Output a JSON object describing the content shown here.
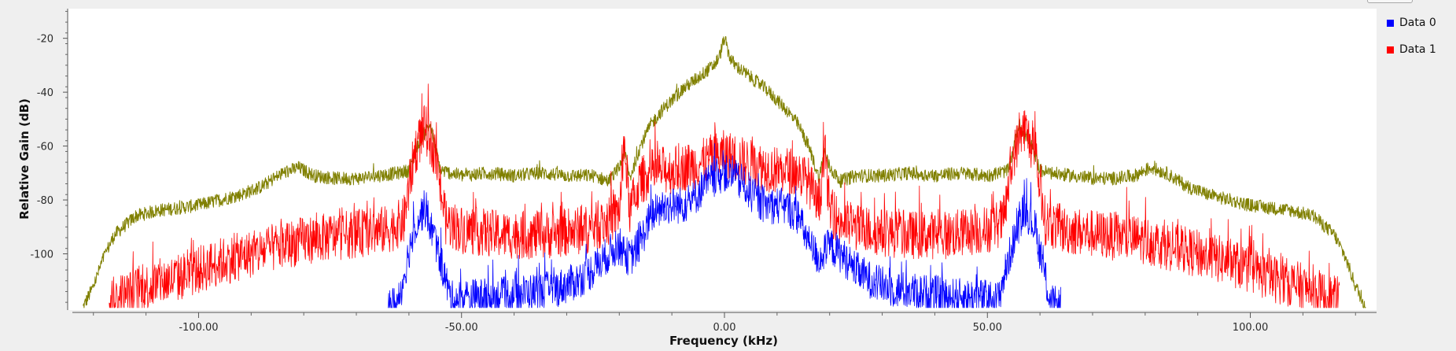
{
  "chart_data": {
    "type": "line",
    "title": "",
    "xlabel": "Frequency (kHz)",
    "ylabel": "Relative Gain (dB)",
    "xlim": [
      -124,
      124
    ],
    "ylim": [
      -120,
      -9
    ],
    "x_ticks": [
      -100,
      -50,
      0,
      50,
      100
    ],
    "x_tick_labels": [
      "-100.00",
      "-50.00",
      "0.00",
      "50.00",
      "100.00"
    ],
    "y_ticks": [
      -20,
      -40,
      -60,
      -80,
      -100
    ],
    "y_tick_labels": [
      "-20",
      "-40",
      "-60",
      "-80",
      "-100"
    ],
    "grid": false,
    "legend_position": "right",
    "series": [
      {
        "name": "Data 0",
        "color": "#0000ff",
        "x": [
          -64,
          -62,
          -59,
          -57,
          -55,
          -52,
          -48,
          -44,
          -40,
          -36,
          -32,
          -28,
          -25,
          -22,
          -20,
          -18,
          -16,
          -14,
          -12,
          -10,
          -8,
          -6,
          -4,
          -2,
          0,
          2,
          4,
          6,
          8,
          10,
          12,
          14,
          16,
          18,
          20,
          22,
          25,
          28,
          32,
          36,
          40,
          44,
          48,
          52,
          55,
          57,
          59,
          62,
          64
        ],
        "values": [
          -120,
          -118,
          -90,
          -83,
          -95,
          -117,
          -116,
          -116,
          -115,
          -114,
          -113,
          -110,
          -106,
          -100,
          -97,
          -102,
          -96,
          -86,
          -83,
          -82,
          -82,
          -80,
          -75,
          -72,
          -70,
          -72,
          -75,
          -80,
          -82,
          -82,
          -83,
          -86,
          -96,
          -102,
          -97,
          -100,
          -106,
          -110,
          -113,
          -114,
          -115,
          -116,
          -116,
          -117,
          -95,
          -83,
          -90,
          -118,
          -120
        ],
        "noise_db": 7
      },
      {
        "name": "Data 1",
        "color": "#ff0000",
        "x": [
          -117,
          -112,
          -108,
          -104,
          -100,
          -96,
          -92,
          -88,
          -84,
          -80,
          -76,
          -72,
          -68,
          -64,
          -61,
          -59,
          -57,
          -55,
          -53,
          -50,
          -46,
          -42,
          -38,
          -34,
          -30,
          -26,
          -22,
          -20,
          -19,
          -18,
          -16,
          -14,
          -12,
          -10,
          -8,
          -6,
          -4,
          -2,
          0,
          2,
          4,
          6,
          8,
          10,
          12,
          14,
          16,
          18,
          19,
          20,
          22,
          26,
          30,
          34,
          38,
          42,
          46,
          50,
          53,
          55,
          57,
          59,
          61,
          64,
          68,
          72,
          76,
          80,
          84,
          88,
          92,
          96,
          100,
          104,
          108,
          112,
          117
        ],
        "values": [
          -118,
          -114,
          -111,
          -109,
          -106,
          -103,
          -101,
          -99,
          -97,
          -95,
          -94,
          -93,
          -92,
          -91,
          -88,
          -63,
          -53,
          -63,
          -88,
          -91,
          -92,
          -93,
          -93,
          -93,
          -92,
          -91,
          -88,
          -84,
          -60,
          -84,
          -73,
          -70,
          -69,
          -69,
          -68,
          -67,
          -66,
          -64,
          -63,
          -64,
          -66,
          -67,
          -68,
          -69,
          -69,
          -70,
          -73,
          -84,
          -60,
          -84,
          -88,
          -91,
          -92,
          -93,
          -93,
          -93,
          -92,
          -91,
          -88,
          -63,
          -53,
          -63,
          -88,
          -91,
          -92,
          -93,
          -94,
          -95,
          -97,
          -99,
          -101,
          -103,
          -106,
          -109,
          -111,
          -114,
          -118
        ],
        "noise_db": 9
      },
      {
        "name": "",
        "color": "#808000",
        "x": [
          -122,
          -120,
          -118,
          -116,
          -112,
          -108,
          -104,
          -100,
          -96,
          -92,
          -88,
          -84,
          -81,
          -78,
          -74,
          -70,
          -66,
          -62,
          -60,
          -58,
          -56,
          -54,
          -50,
          -45,
          -40,
          -35,
          -30,
          -25,
          -22,
          -20,
          -19,
          -18,
          -16,
          -14,
          -12,
          -10,
          -8,
          -6,
          -4,
          -2,
          -1,
          0,
          1,
          2,
          4,
          6,
          8,
          10,
          12,
          14,
          16,
          18,
          19,
          20,
          22,
          25,
          30,
          35,
          40,
          45,
          50,
          54,
          56,
          58,
          60,
          62,
          66,
          70,
          74,
          78,
          81,
          84,
          88,
          92,
          96,
          100,
          104,
          108,
          112,
          116,
          118,
          120,
          122
        ],
        "values": [
          -120,
          -112,
          -101,
          -93,
          -86,
          -84,
          -83,
          -82,
          -80,
          -78,
          -75,
          -70,
          -68,
          -71,
          -72,
          -72,
          -71,
          -70,
          -69,
          -58,
          -52,
          -69,
          -71,
          -70,
          -71,
          -70,
          -71,
          -71,
          -73,
          -68,
          -62,
          -72,
          -60,
          -52,
          -47,
          -43,
          -39,
          -36,
          -33,
          -30,
          -27,
          -20,
          -27,
          -30,
          -33,
          -36,
          -39,
          -43,
          -47,
          -52,
          -60,
          -72,
          -62,
          -68,
          -73,
          -71,
          -71,
          -70,
          -71,
          -70,
          -71,
          -69,
          -52,
          -58,
          -69,
          -70,
          -71,
          -72,
          -72,
          -71,
          -68,
          -70,
          -75,
          -78,
          -80,
          -82,
          -83,
          -84,
          -86,
          -93,
          -101,
          -112,
          -120
        ],
        "noise_db": 2.5
      }
    ]
  },
  "legend": {
    "items": [
      {
        "label": "Data 0",
        "color": "#0000ff"
      },
      {
        "label": "Data 1",
        "color": "#ff0000"
      }
    ]
  }
}
